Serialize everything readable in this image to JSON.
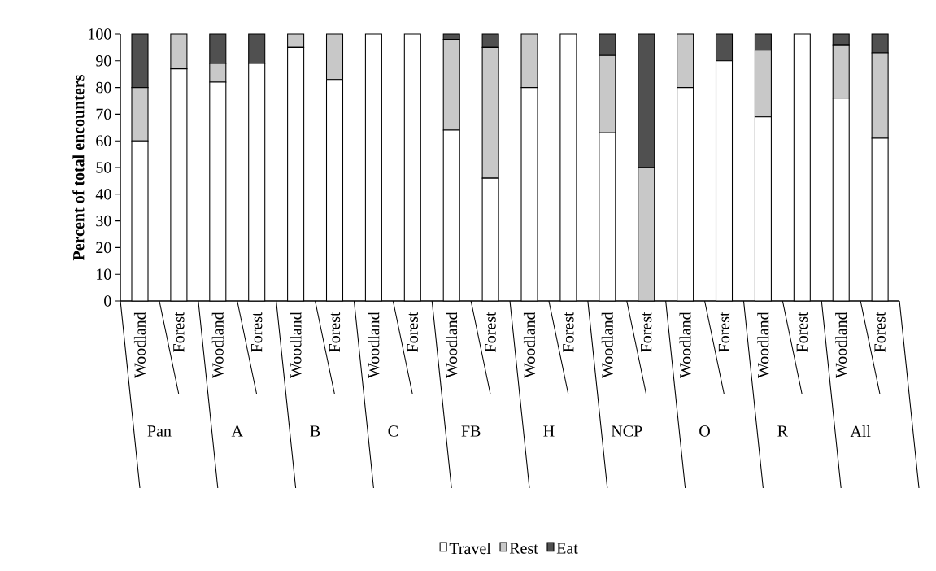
{
  "chart_data": {
    "type": "bar",
    "stacked": true,
    "ylabel": "Percent of total encounters",
    "categories": [
      "Woodland",
      "Forest",
      "Woodland",
      "Forest",
      "Woodland",
      "Forest",
      "Woodland",
      "Forest",
      "Woodland",
      "Forest",
      "Woodland",
      "Forest",
      "Woodland",
      "Forest",
      "Woodland",
      "Forest",
      "Woodland",
      "Forest",
      "Woodland",
      "Forest"
    ],
    "series": [
      {
        "name": "Travel",
        "color": "#ffffff",
        "values": [
          60,
          87,
          82,
          89,
          95,
          83,
          100,
          100,
          64,
          46,
          80,
          100,
          63,
          0,
          80,
          90,
          69,
          100,
          76,
          61
        ]
      },
      {
        "name": "Rest",
        "color": "#c8c8c8",
        "values": [
          20,
          13,
          7,
          0,
          5,
          17,
          0,
          0,
          34,
          49,
          20,
          0,
          29,
          50,
          20,
          0,
          25,
          0,
          20,
          32
        ]
      },
      {
        "name": "Eat",
        "color": "#505050",
        "values": [
          20,
          0,
          11,
          11,
          0,
          0,
          0,
          0,
          2,
          5,
          0,
          0,
          8,
          50,
          0,
          10,
          6,
          0,
          4,
          7
        ]
      }
    ],
    "annotations": [
      "Pan",
      "A",
      "B",
      "C",
      "FB",
      "H",
      "NCP",
      "O",
      "R",
      "All"
    ],
    "ylim": [
      0,
      100
    ],
    "yticks": [
      0,
      10,
      20,
      30,
      40,
      50,
      60,
      70,
      80,
      90,
      100
    ],
    "grid": false,
    "legend": "bottom"
  }
}
